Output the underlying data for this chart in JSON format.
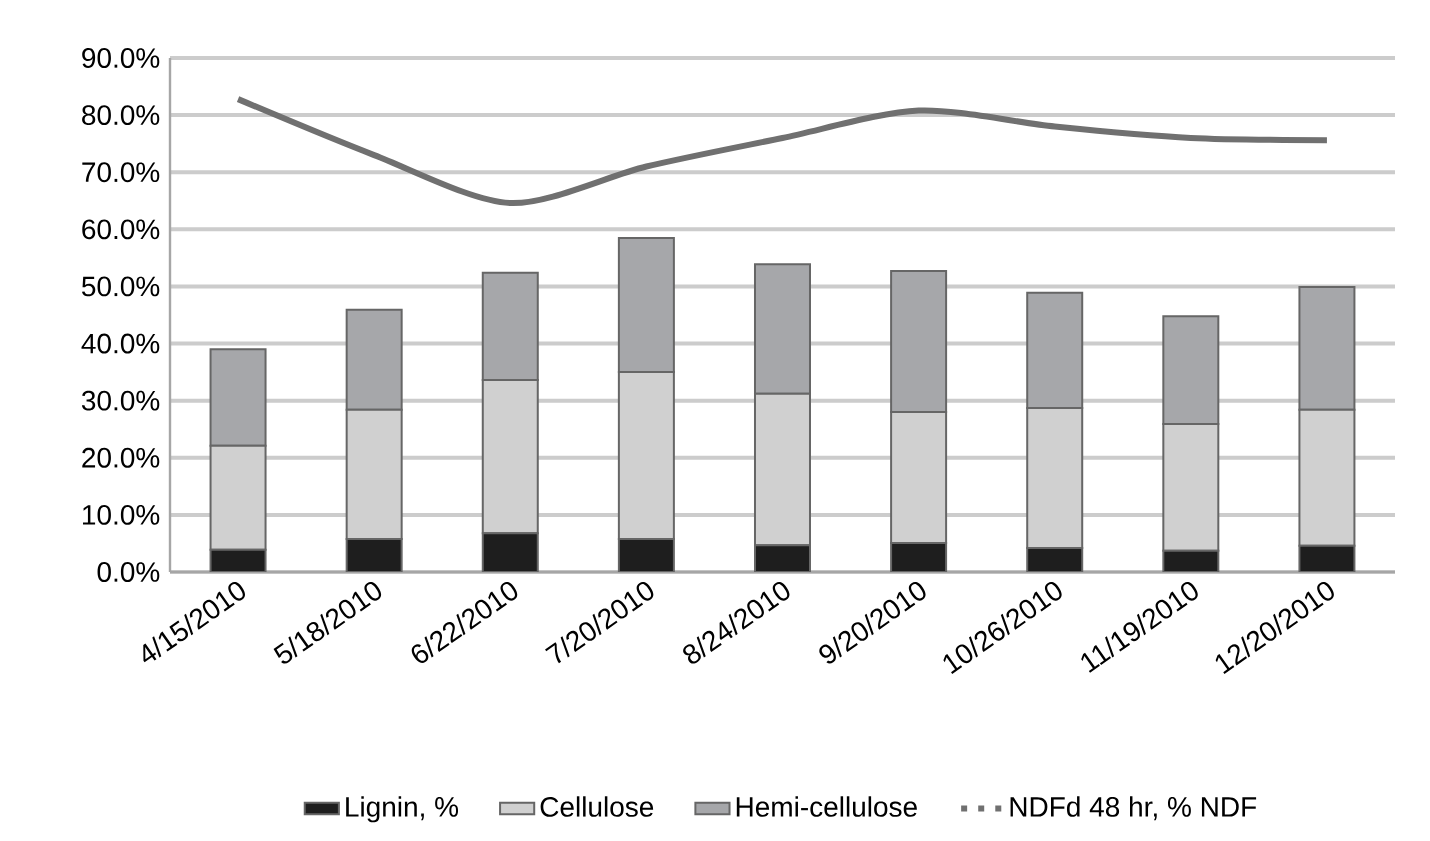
{
  "chart_data": {
    "type": "bar",
    "stacked": true,
    "categories": [
      "4/15/2010",
      "5/18/2010",
      "6/22/2010",
      "7/20/2010",
      "8/24/2010",
      "9/20/2010",
      "10/26/2010",
      "11/19/2010",
      "12/20/2010"
    ],
    "series": [
      {
        "name": "Lignin, %",
        "color": "#1e1e1e",
        "values": [
          3.9,
          5.8,
          6.8,
          5.8,
          4.7,
          5.1,
          4.2,
          3.7,
          4.6
        ]
      },
      {
        "name": "Cellulose",
        "color": "#d0d0d0",
        "values": [
          18.2,
          22.6,
          26.8,
          29.2,
          26.5,
          22.9,
          24.5,
          22.2,
          23.8
        ]
      },
      {
        "name": "Hemi-cellulose",
        "color": "#a6a7aa",
        "values": [
          16.9,
          17.5,
          18.8,
          23.5,
          22.7,
          24.7,
          20.2,
          18.9,
          21.5
        ]
      },
      {
        "name": "NDFd 48 hr, % NDF",
        "type": "line",
        "color": "#707070",
        "line_style": "solid",
        "marker": "none",
        "values": [
          82.8,
          73.0,
          64.6,
          71.0,
          76.0,
          80.8,
          78.0,
          76.0,
          75.6
        ]
      }
    ],
    "ylim": [
      0,
      90
    ],
    "yticks": [
      {
        "value": 0,
        "label": "0.0%"
      },
      {
        "value": 10,
        "label": "10.0%"
      },
      {
        "value": 20,
        "label": "20.0%"
      },
      {
        "value": 30,
        "label": "30.0%"
      },
      {
        "value": 40,
        "label": "40.0%"
      },
      {
        "value": 50,
        "label": "50.0%"
      },
      {
        "value": 60,
        "label": "60.0%"
      },
      {
        "value": 70,
        "label": "70.0%"
      },
      {
        "value": 80,
        "label": "80.0%"
      },
      {
        "value": 90,
        "label": "90.0%"
      }
    ],
    "grid": "y",
    "legend": "bottom"
  }
}
